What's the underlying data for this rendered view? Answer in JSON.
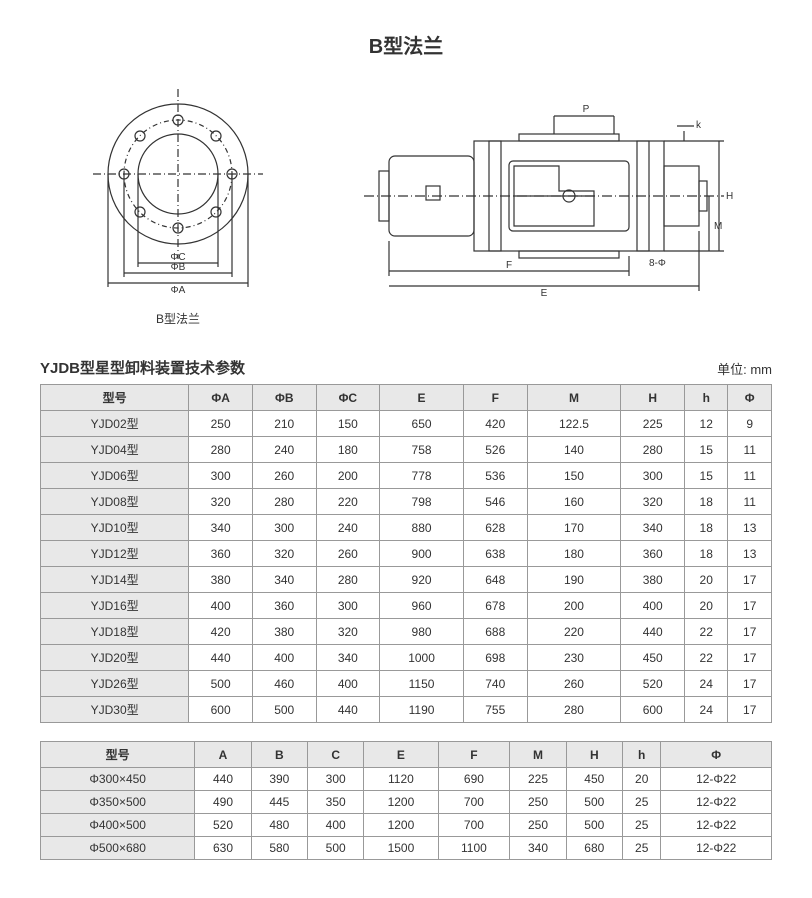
{
  "title": "B型法兰",
  "diagram": {
    "flange_caption": "B型法兰",
    "flange_labels": {
      "phiC": "ΦC",
      "phiB": "ΦB",
      "phiA": "ΦA"
    },
    "side_labels": {
      "P": "P",
      "k": "k",
      "H": "H",
      "M": "M",
      "F": "F",
      "E": "E",
      "holes": "8-Φ"
    },
    "stroke": "#333333",
    "fill_body": "#ffffff"
  },
  "table1": {
    "title": "YJDB型星型卸料装置技术参数",
    "unit": "单位: mm",
    "columns": [
      "型号",
      "ΦA",
      "ΦB",
      "ΦC",
      "E",
      "F",
      "M",
      "H",
      "h",
      "Φ"
    ],
    "rows": [
      [
        "YJD02型",
        "250",
        "210",
        "150",
        "650",
        "420",
        "122.5",
        "225",
        "12",
        "9"
      ],
      [
        "YJD04型",
        "280",
        "240",
        "180",
        "758",
        "526",
        "140",
        "280",
        "15",
        "11"
      ],
      [
        "YJD06型",
        "300",
        "260",
        "200",
        "778",
        "536",
        "150",
        "300",
        "15",
        "11"
      ],
      [
        "YJD08型",
        "320",
        "280",
        "220",
        "798",
        "546",
        "160",
        "320",
        "18",
        "11"
      ],
      [
        "YJD10型",
        "340",
        "300",
        "240",
        "880",
        "628",
        "170",
        "340",
        "18",
        "13"
      ],
      [
        "YJD12型",
        "360",
        "320",
        "260",
        "900",
        "638",
        "180",
        "360",
        "18",
        "13"
      ],
      [
        "YJD14型",
        "380",
        "340",
        "280",
        "920",
        "648",
        "190",
        "380",
        "20",
        "17"
      ],
      [
        "YJD16型",
        "400",
        "360",
        "300",
        "960",
        "678",
        "200",
        "400",
        "20",
        "17"
      ],
      [
        "YJD18型",
        "420",
        "380",
        "320",
        "980",
        "688",
        "220",
        "440",
        "22",
        "17"
      ],
      [
        "YJD20型",
        "440",
        "400",
        "340",
        "1000",
        "698",
        "230",
        "450",
        "22",
        "17"
      ],
      [
        "YJD26型",
        "500",
        "460",
        "400",
        "1150",
        "740",
        "260",
        "520",
        "24",
        "17"
      ],
      [
        "YJD30型",
        "600",
        "500",
        "440",
        "1190",
        "755",
        "280",
        "600",
        "24",
        "17"
      ]
    ]
  },
  "table2": {
    "columns": [
      "型号",
      "A",
      "B",
      "C",
      "E",
      "F",
      "M",
      "H",
      "h",
      "Φ"
    ],
    "rows": [
      [
        "Φ300×450",
        "440",
        "390",
        "300",
        "1120",
        "690",
        "225",
        "450",
        "20",
        "12-Φ22"
      ],
      [
        "Φ350×500",
        "490",
        "445",
        "350",
        "1200",
        "700",
        "250",
        "500",
        "25",
        "12-Φ22"
      ],
      [
        "Φ400×500",
        "520",
        "480",
        "400",
        "1200",
        "700",
        "250",
        "500",
        "25",
        "12-Φ22"
      ],
      [
        "Φ500×680",
        "630",
        "580",
        "500",
        "1500",
        "1100",
        "340",
        "680",
        "25",
        "12-Φ22"
      ]
    ]
  }
}
